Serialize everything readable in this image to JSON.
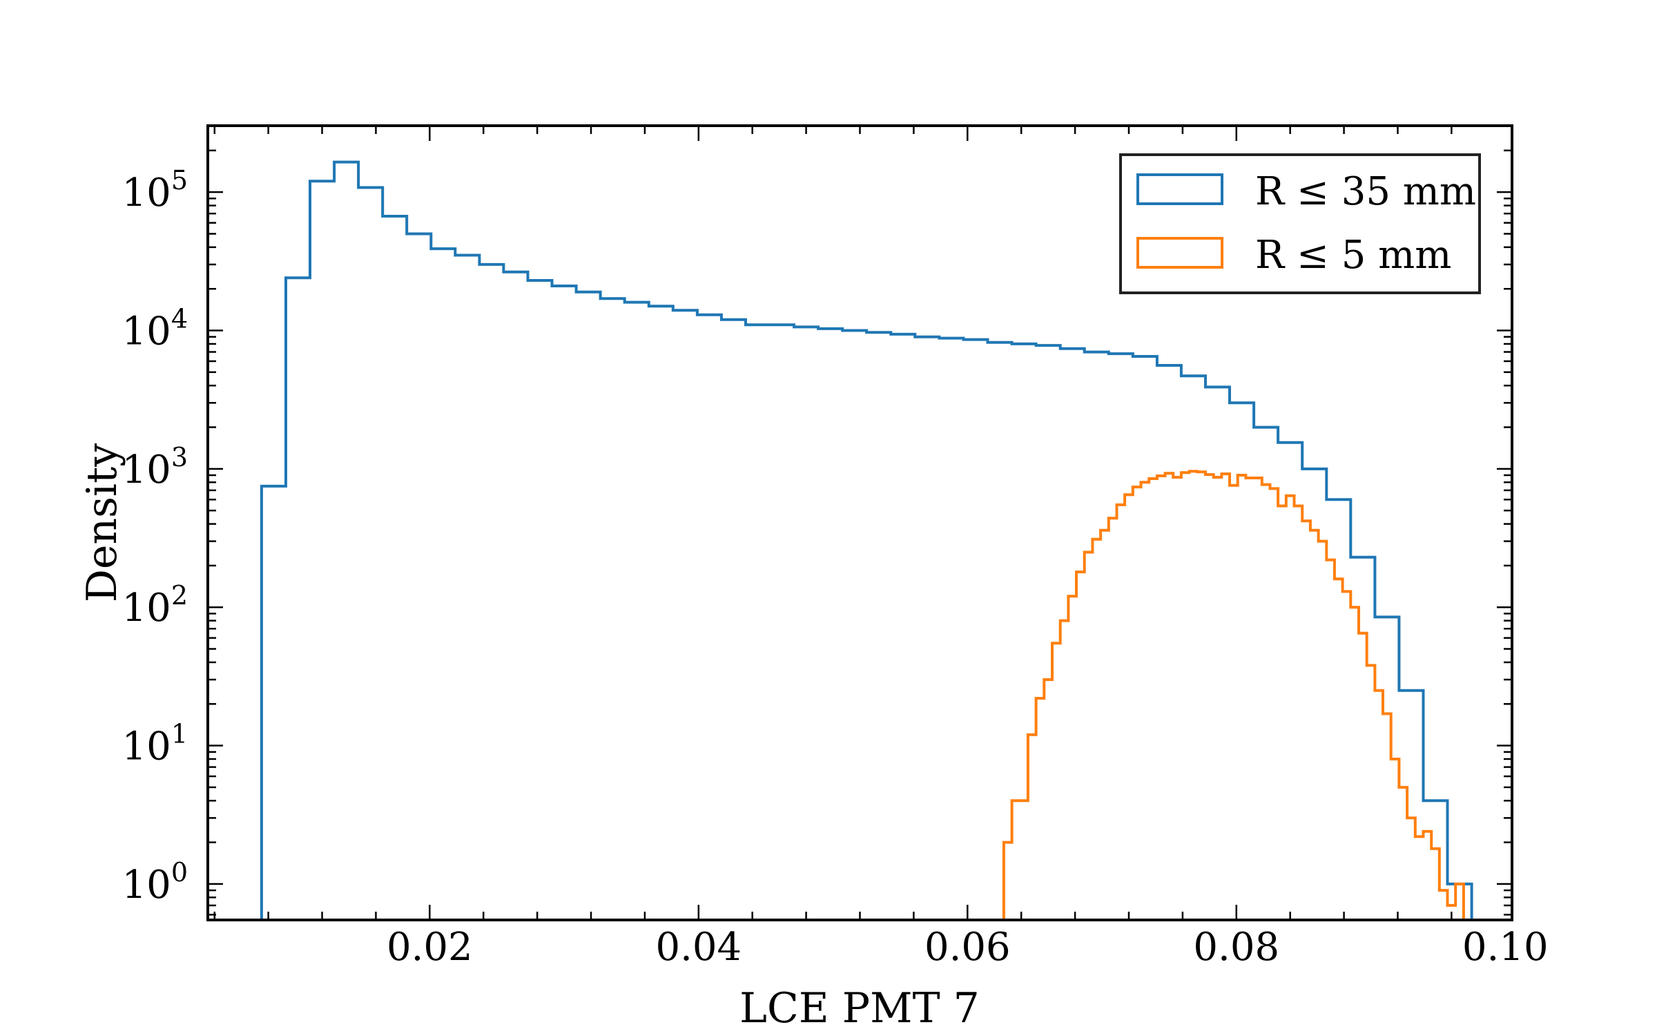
{
  "chart_data": {
    "type": "histogram",
    "xlabel": "LCE PMT 7",
    "ylabel": "Density",
    "xlim": [
      0.0035,
      0.1005
    ],
    "ylim_log10": [
      -0.26,
      5.48
    ],
    "y_scale": "log",
    "grid": false,
    "legend_placement": "top-right",
    "x_ticks": [
      0.02,
      0.04,
      0.06,
      0.08,
      0.1
    ],
    "x_tick_labels": [
      "0.02",
      "0.04",
      "0.06",
      "0.08",
      "0.10"
    ],
    "y_tick_exponents": [
      0,
      1,
      2,
      3,
      4,
      5
    ],
    "y_tick_base": "10",
    "series": [
      {
        "name": "R ≤ 35 mm",
        "color": "#1f77b4",
        "edges": [
          0.0075,
          0.0093,
          0.0111,
          0.0129,
          0.0147,
          0.0165,
          0.0183,
          0.0201,
          0.0219,
          0.0237,
          0.0255,
          0.0273,
          0.0291,
          0.0309,
          0.0327,
          0.0345,
          0.0363,
          0.0381,
          0.0399,
          0.0417,
          0.0435,
          0.0453,
          0.0471,
          0.0489,
          0.0507,
          0.0525,
          0.0543,
          0.0561,
          0.0579,
          0.0597,
          0.0615,
          0.0633,
          0.0651,
          0.0669,
          0.0687,
          0.0705,
          0.0723,
          0.0741,
          0.0759,
          0.0777,
          0.0795,
          0.0813,
          0.0831,
          0.0849,
          0.0867,
          0.0885,
          0.0903,
          0.0921,
          0.0939,
          0.0957,
          0.0975
        ],
        "values": [
          750,
          24000,
          120000,
          165000,
          108000,
          67000,
          50000,
          39000,
          35000,
          30000,
          26500,
          23000,
          21000,
          19000,
          17000,
          16000,
          15000,
          14000,
          13000,
          12000,
          11000,
          11000,
          10600,
          10300,
          10000,
          9700,
          9400,
          9000,
          8800,
          8600,
          8200,
          8000,
          7800,
          7400,
          7000,
          6800,
          6500,
          5600,
          4700,
          3900,
          3000,
          2000,
          1550,
          1000,
          600,
          230,
          85,
          25,
          4,
          1
        ]
      },
      {
        "name": "R ≤ 5 mm",
        "color": "#ff7f0e",
        "edges": [
          0.0627,
          0.0633,
          0.0639,
          0.0645,
          0.0651,
          0.0657,
          0.0663,
          0.0669,
          0.0675,
          0.0681,
          0.0687,
          0.0693,
          0.0699,
          0.0705,
          0.0711,
          0.0717,
          0.0723,
          0.0729,
          0.0735,
          0.0741,
          0.0747,
          0.0753,
          0.0759,
          0.0765,
          0.0771,
          0.0777,
          0.0783,
          0.0789,
          0.0795,
          0.0801,
          0.0807,
          0.0813,
          0.0819,
          0.0825,
          0.0831,
          0.0837,
          0.0843,
          0.0849,
          0.0855,
          0.0861,
          0.0867,
          0.0873,
          0.0879,
          0.0885,
          0.0891,
          0.0897,
          0.0903,
          0.0909,
          0.0915,
          0.0921,
          0.0927,
          0.0933,
          0.0939,
          0.0945,
          0.0951,
          0.0957,
          0.0963,
          0.0969
        ],
        "values": [
          2,
          4,
          4,
          12,
          22,
          30,
          55,
          80,
          120,
          180,
          250,
          310,
          360,
          440,
          550,
          650,
          740,
          800,
          850,
          890,
          930,
          870,
          940,
          960,
          950,
          910,
          870,
          920,
          760,
          900,
          860,
          860,
          770,
          720,
          540,
          640,
          540,
          420,
          360,
          300,
          220,
          160,
          130,
          100,
          65,
          38,
          25,
          17,
          8,
          5,
          3,
          2.2,
          2.4,
          1.8,
          0.9,
          0.7,
          1
        ]
      }
    ]
  }
}
